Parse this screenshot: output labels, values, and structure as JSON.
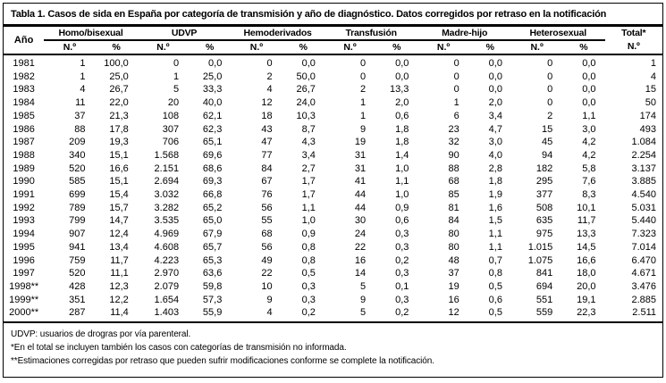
{
  "title": "Tabla 1. Casos de sida en España por categoría de transmisión y año de diagnóstico. Datos corregidos por retraso en la notificación",
  "table": {
    "year_header": "Año",
    "groups": [
      {
        "label": "Homo/bisexual"
      },
      {
        "label": "UDVP"
      },
      {
        "label": "Hemoderivados"
      },
      {
        "label": "Transfusión"
      },
      {
        "label": "Madre-hijo"
      },
      {
        "label": "Heterosexual"
      }
    ],
    "sub_n": "N.º",
    "sub_pct": "%",
    "total_header": "Total*",
    "total_sub": "N.º",
    "rows": [
      {
        "year": "1981",
        "values": [
          "1",
          "100,0",
          "0",
          "0,0",
          "0",
          "0,0",
          "0",
          "0,0",
          "0",
          "0,0",
          "0",
          "0,0"
        ],
        "total": "1"
      },
      {
        "year": "1982",
        "values": [
          "1",
          "25,0",
          "1",
          "25,0",
          "2",
          "50,0",
          "0",
          "0,0",
          "0",
          "0,0",
          "0",
          "0,0"
        ],
        "total": "4"
      },
      {
        "year": "1983",
        "values": [
          "4",
          "26,7",
          "5",
          "33,3",
          "4",
          "26,7",
          "2",
          "13,3",
          "0",
          "0,0",
          "0",
          "0,0"
        ],
        "total": "15"
      },
      {
        "year": "1984",
        "values": [
          "11",
          "22,0",
          "20",
          "40,0",
          "12",
          "24,0",
          "1",
          "2,0",
          "1",
          "2,0",
          "0",
          "0,0"
        ],
        "total": "50"
      },
      {
        "year": "1985",
        "values": [
          "37",
          "21,3",
          "108",
          "62,1",
          "18",
          "10,3",
          "1",
          "0,6",
          "6",
          "3,4",
          "2",
          "1,1"
        ],
        "total": "174"
      },
      {
        "year": "1986",
        "values": [
          "88",
          "17,8",
          "307",
          "62,3",
          "43",
          "8,7",
          "9",
          "1,8",
          "23",
          "4,7",
          "15",
          "3,0"
        ],
        "total": "493"
      },
      {
        "year": "1987",
        "values": [
          "209",
          "19,3",
          "706",
          "65,1",
          "47",
          "4,3",
          "19",
          "1,8",
          "32",
          "3,0",
          "45",
          "4,2"
        ],
        "total": "1.084"
      },
      {
        "year": "1988",
        "values": [
          "340",
          "15,1",
          "1.568",
          "69,6",
          "77",
          "3,4",
          "31",
          "1,4",
          "90",
          "4,0",
          "94",
          "4,2"
        ],
        "total": "2.254"
      },
      {
        "year": "1989",
        "values": [
          "520",
          "16,6",
          "2.151",
          "68,6",
          "84",
          "2,7",
          "31",
          "1,0",
          "88",
          "2,8",
          "182",
          "5,8"
        ],
        "total": "3.137"
      },
      {
        "year": "1990",
        "values": [
          "585",
          "15,1",
          "2.694",
          "69,3",
          "67",
          "1,7",
          "41",
          "1,1",
          "68",
          "1,8",
          "295",
          "7,6"
        ],
        "total": "3.885"
      },
      {
        "year": "1991",
        "values": [
          "699",
          "15,4",
          "3.032",
          "66,8",
          "76",
          "1,7",
          "44",
          "1,0",
          "85",
          "1,9",
          "377",
          "8,3"
        ],
        "total": "4.540"
      },
      {
        "year": "1992",
        "values": [
          "789",
          "15,7",
          "3.282",
          "65,2",
          "56",
          "1,1",
          "44",
          "0,9",
          "81",
          "1,6",
          "508",
          "10,1"
        ],
        "total": "5.031"
      },
      {
        "year": "1993",
        "values": [
          "799",
          "14,7",
          "3.535",
          "65,0",
          "55",
          "1,0",
          "30",
          "0,6",
          "84",
          "1,5",
          "635",
          "11,7"
        ],
        "total": "5.440"
      },
      {
        "year": "1994",
        "values": [
          "907",
          "12,4",
          "4.969",
          "67,9",
          "68",
          "0,9",
          "24",
          "0,3",
          "80",
          "1,1",
          "975",
          "13,3"
        ],
        "total": "7.323"
      },
      {
        "year": "1995",
        "values": [
          "941",
          "13,4",
          "4.608",
          "65,7",
          "56",
          "0,8",
          "22",
          "0,3",
          "80",
          "1,1",
          "1.015",
          "14,5"
        ],
        "total": "7.014"
      },
      {
        "year": "1996",
        "values": [
          "759",
          "11,7",
          "4.223",
          "65,3",
          "49",
          "0,8",
          "16",
          "0,2",
          "48",
          "0,7",
          "1.075",
          "16,6"
        ],
        "total": "6.470"
      },
      {
        "year": "1997",
        "values": [
          "520",
          "11,1",
          "2.970",
          "63,6",
          "22",
          "0,5",
          "14",
          "0,3",
          "37",
          "0,8",
          "841",
          "18,0"
        ],
        "total": "4.671"
      },
      {
        "year": "1998**",
        "values": [
          "428",
          "12,3",
          "2.079",
          "59,8",
          "10",
          "0,3",
          "5",
          "0,1",
          "19",
          "0,5",
          "694",
          "20,0"
        ],
        "total": "3.476"
      },
      {
        "year": "1999**",
        "values": [
          "351",
          "12,2",
          "1.654",
          "57,3",
          "9",
          "0,3",
          "9",
          "0,3",
          "16",
          "0,6",
          "551",
          "19,1"
        ],
        "total": "2.885"
      },
      {
        "year": "2000**",
        "values": [
          "287",
          "11,4",
          "1.403",
          "55,9",
          "4",
          "0,2",
          "5",
          "0,2",
          "12",
          "0,5",
          "559",
          "22,3"
        ],
        "total": "2.511"
      }
    ]
  },
  "footnotes": [
    "UDVP: usuarios de drogras por vía parenteral.",
    "*En el total se incluyen también los casos con categorías de transmisión no informada.",
    "**Estimaciones corregidas por retraso que pueden sufrir modificaciones conforme se complete la notificación."
  ]
}
